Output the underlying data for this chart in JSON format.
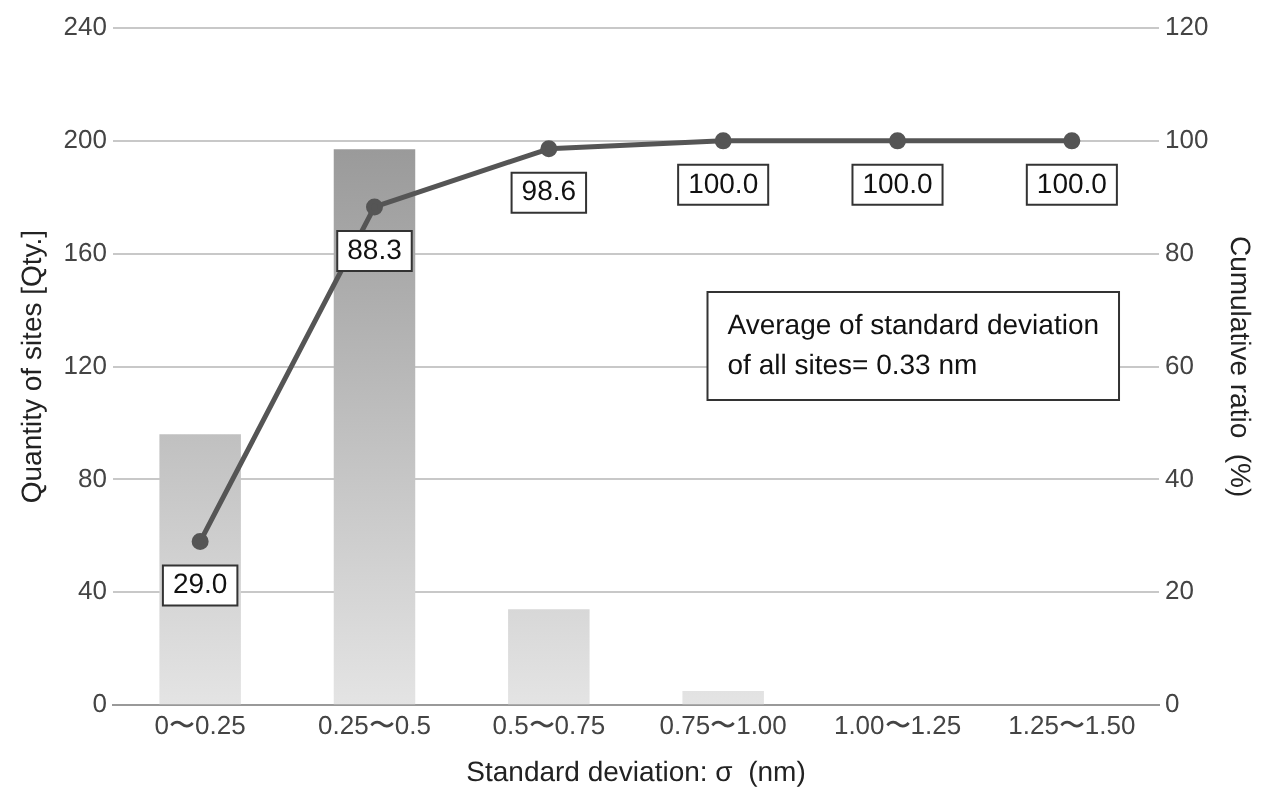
{
  "chart_data": {
    "type": "bar",
    "xlabel": "Standard deviation: σ  (nm)",
    "ylabel": "Quantity of sites [Qty.]",
    "y2label": "Cumulative ratio  (%)",
    "categories": [
      "0〜0.25",
      "0.25〜0.5",
      "0.5〜0.75",
      "0.75〜1.00",
      "1.00〜1.25",
      "1.25〜1.50"
    ],
    "series": [
      {
        "color": "#8a8a8a",
        "values": [
          96,
          197,
          34,
          5,
          0,
          0
        ]
      },
      {
        "type": "line",
        "axis": "y2",
        "color": "#555555",
        "values": [
          29.0,
          88.3,
          98.6,
          100.0,
          100.0,
          100.0
        ],
        "value_labels": [
          "29.0",
          "88.3",
          "98.6",
          "100.0",
          "100.0",
          "100.0"
        ],
        "marker": "circle"
      }
    ],
    "ylim": [
      0,
      240
    ],
    "yticks": [
      0,
      40,
      80,
      120,
      160,
      200,
      240
    ],
    "y2lim": [
      0,
      120
    ],
    "y2ticks": [
      0,
      20,
      40,
      60,
      80,
      100,
      120
    ],
    "grid": "y",
    "legend": false,
    "annotations": [
      "Average of standard deviation\nof all sites= 0.33 nm"
    ]
  }
}
